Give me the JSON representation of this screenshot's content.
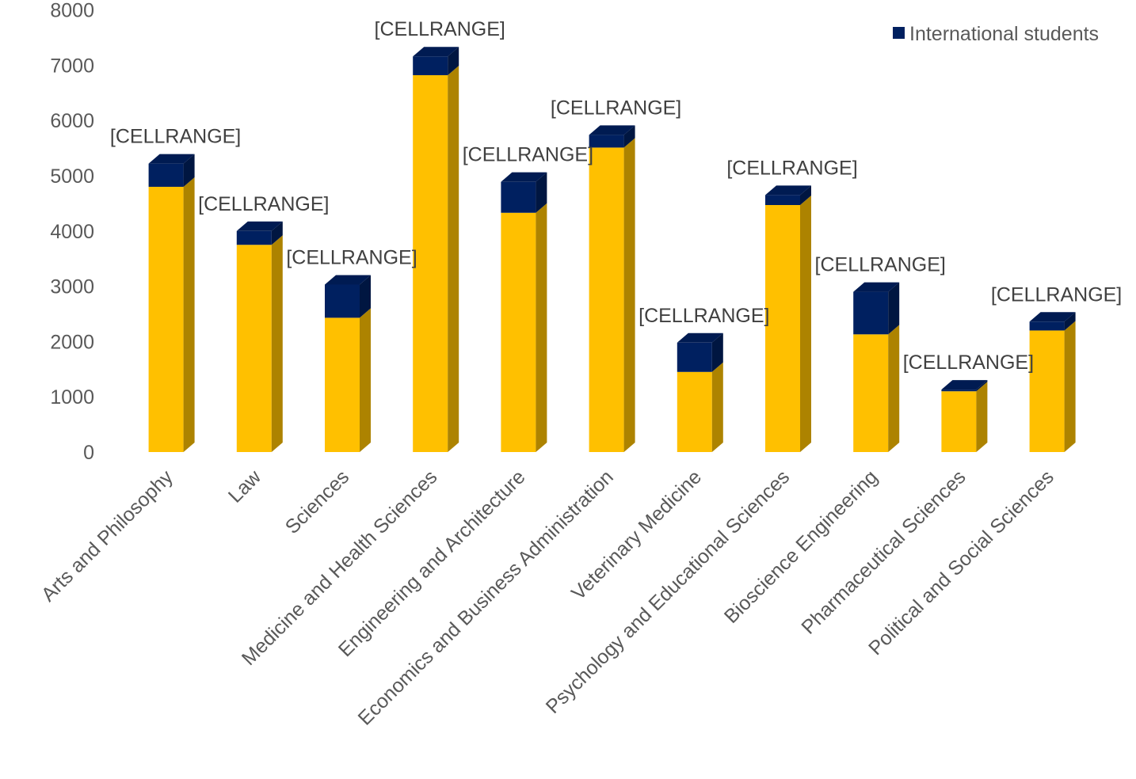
{
  "chart_data": {
    "type": "bar",
    "stacked": true,
    "style": "3d-column",
    "categories": [
      "Arts and Philosophy",
      "Law",
      "Sciences",
      "Medicine and Health Sciences",
      "Engineering and Architecture",
      "Economics and Business Administration",
      "Veterinary Medicine",
      "Psychology and Educational Sciences",
      "Bioscience Engineering",
      "Pharmaceutical Sciences",
      "Political and Social Sciences"
    ],
    "series": [
      {
        "values": [
          4800,
          3750,
          2430,
          6820,
          4330,
          5510,
          1450,
          4470,
          2130,
          1100,
          2200
        ],
        "color": "#FFC000"
      },
      {
        "name": "International students",
        "values": [
          420,
          250,
          600,
          340,
          560,
          230,
          530,
          180,
          770,
          30,
          160
        ],
        "color": "#002060"
      }
    ],
    "data_labels": [
      "[CELLRANGE]",
      "[CELLRANGE]",
      "[CELLRANGE]",
      "[CELLRANGE]",
      "[CELLRANGE]",
      "[CELLRANGE]",
      "[CELLRANGE]",
      "[CELLRANGE]",
      "[CELLRANGE]",
      "[CELLRANGE]",
      "[CELLRANGE]"
    ],
    "yticks": [
      "0",
      "1000",
      "2000",
      "3000",
      "4000",
      "5000",
      "6000",
      "7000",
      "8000"
    ],
    "ylim": [
      0,
      8000
    ],
    "grid": false,
    "legend": {
      "position": "top-right",
      "entries": [
        "International students"
      ]
    }
  }
}
